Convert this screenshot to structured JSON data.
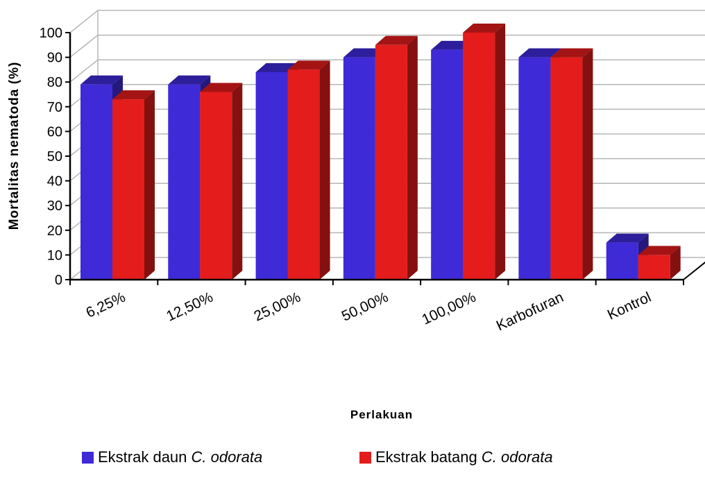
{
  "chart_data": {
    "type": "bar",
    "title": "",
    "xlabel": "Perlakuan",
    "ylabel": "Mortalitas nematoda (%)",
    "ylim": [
      0,
      100
    ],
    "yticks": [
      0,
      10,
      20,
      30,
      40,
      50,
      60,
      70,
      80,
      90,
      100
    ],
    "categories": [
      "6,25%",
      "12,50%",
      "25,00%",
      "50,00%",
      "100,00%",
      "Karbofuran",
      "Kontrol"
    ],
    "series": [
      {
        "name": "Ekstrak daun C. odorata",
        "name_prefix": "Ekstrak daun",
        "name_italic": "C. odorata",
        "color": "#3f2ad8",
        "values": [
          79,
          79,
          84,
          90,
          93,
          90,
          15
        ]
      },
      {
        "name": "Ekstrak batang C. odorata",
        "name_prefix": "Ekstrak batang",
        "name_italic": "C. odorata",
        "color": "#e41c1c",
        "values": [
          73,
          76,
          85,
          95,
          100,
          90,
          10
        ]
      }
    ],
    "grid": true,
    "legend_position": "bottom",
    "style": "3d-clustered-bar"
  }
}
